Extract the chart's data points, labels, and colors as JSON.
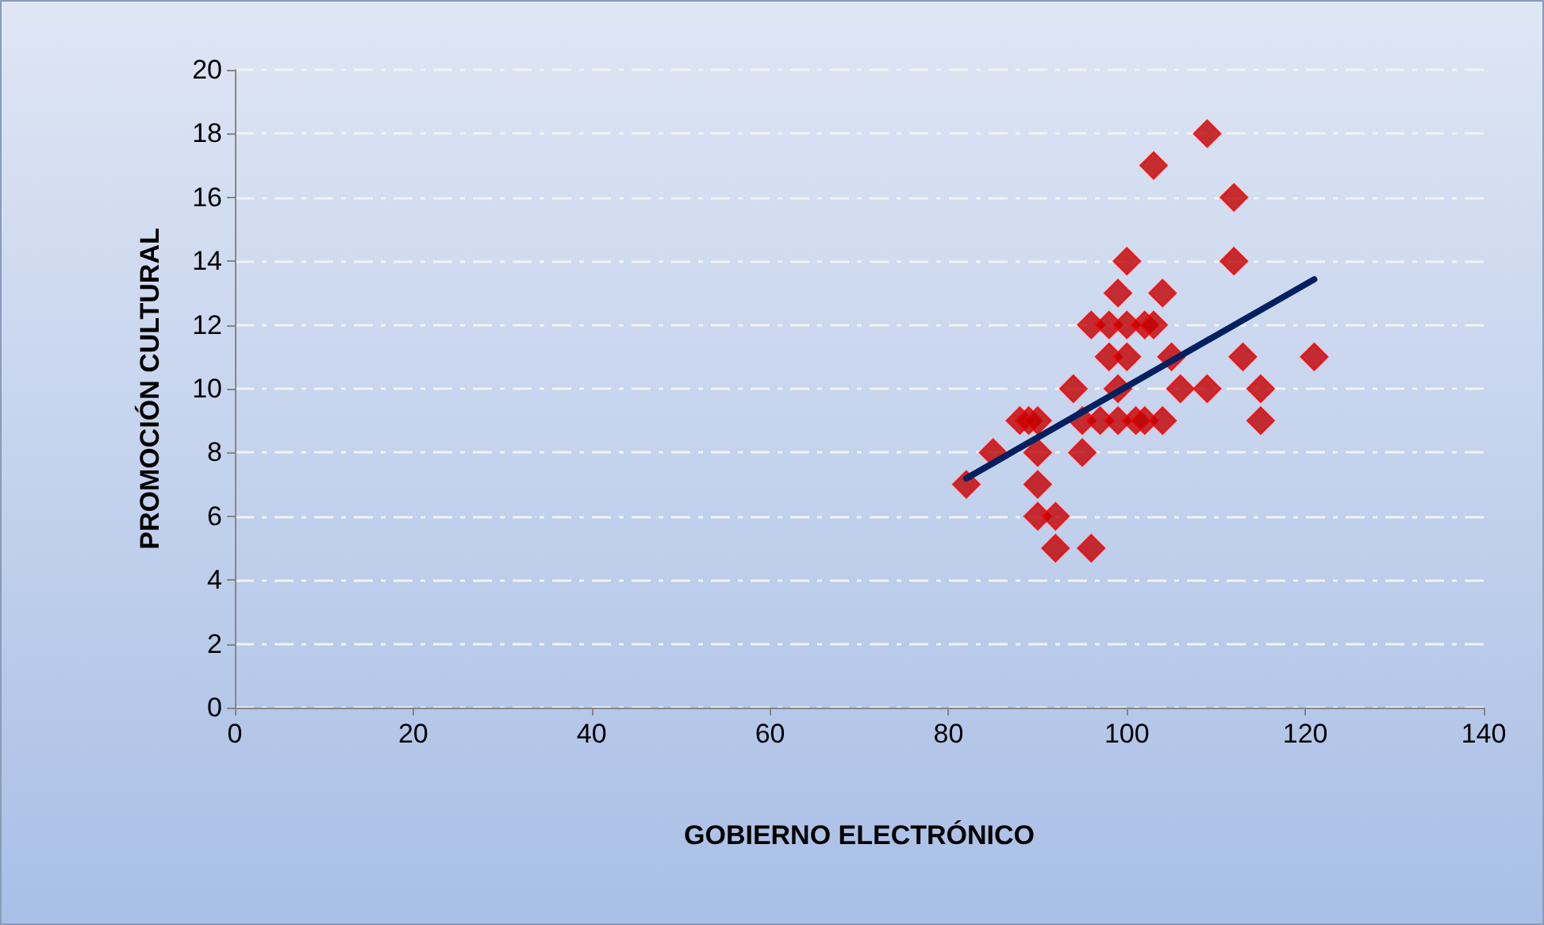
{
  "chart_data": {
    "type": "scatter",
    "xlabel": "GOBIERNO ELECTRÓNICO",
    "ylabel": "PROMOCIÓN CULTURAL",
    "xlim": [
      0,
      140
    ],
    "xticks": [
      0,
      20,
      40,
      60,
      80,
      100,
      120,
      140
    ],
    "ylim": [
      0,
      20
    ],
    "yticks": [
      0,
      2,
      4,
      6,
      8,
      10,
      12,
      14,
      16,
      18,
      20
    ],
    "grid": "y",
    "marker": "diamond",
    "series": [
      {
        "color": "#c00000",
        "x": [
          109,
          103,
          112,
          100,
          112,
          99,
          104,
          96,
          98,
          100,
          102,
          103,
          98,
          100,
          105,
          113,
          121,
          94,
          99,
          106,
          109,
          115,
          88,
          89,
          90,
          95,
          97,
          99,
          101,
          102,
          104,
          115,
          85,
          90,
          95,
          82,
          90,
          90,
          92,
          92,
          96
        ],
        "values": [
          18,
          17,
          16,
          14,
          14,
          13,
          13,
          12,
          12,
          12,
          12,
          12,
          11,
          11,
          11,
          11,
          11,
          10,
          10,
          10,
          10,
          10,
          9,
          9,
          9,
          9,
          9,
          9,
          9,
          9,
          9,
          9,
          8,
          8,
          8,
          7,
          7,
          6,
          6,
          5,
          5
        ]
      },
      {
        "type": "line",
        "color": "#002060",
        "x": [
          82,
          121
        ],
        "values": [
          7.19,
          13.43
        ],
        "marker": "none"
      }
    ]
  }
}
